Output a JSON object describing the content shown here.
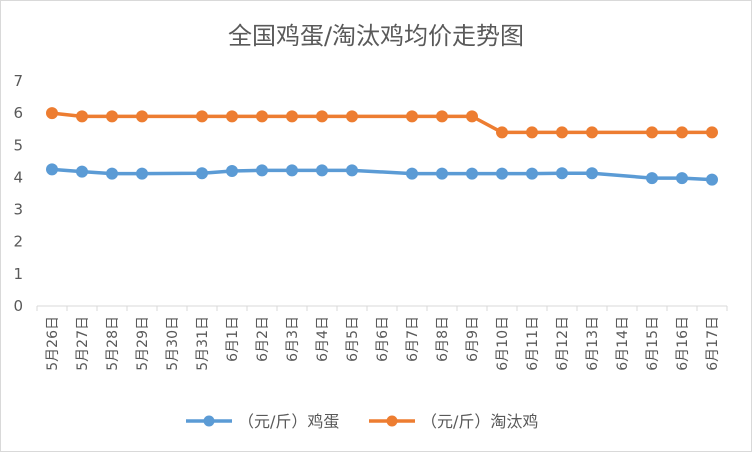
{
  "chart_data": {
    "type": "line",
    "title": "全国鸡蛋/淘汰鸡均价走势图",
    "xlabel": "",
    "ylabel": "",
    "ylim": [
      0,
      7
    ],
    "yticks": [
      0,
      1,
      2,
      3,
      4,
      5,
      6,
      7
    ],
    "grid": false,
    "legend_position": "bottom",
    "categories": [
      "5月26日",
      "5月27日",
      "5月28日",
      "5月29日",
      "5月30日",
      "5月31日",
      "6月1日",
      "6月2日",
      "6月3日",
      "6月4日",
      "6月5日",
      "6月6日",
      "6月7日",
      "6月8日",
      "6月9日",
      "6月10日",
      "6月11日",
      "6月12日",
      "6月13日",
      "6月14日",
      "6月15日",
      "6月16日",
      "6月17日"
    ],
    "series": [
      {
        "name": "（元/斤）鸡蛋",
        "color": "#5b9bd5",
        "values": [
          4.25,
          4.18,
          4.12,
          4.12,
          null,
          4.13,
          4.2,
          4.22,
          4.22,
          4.22,
          4.22,
          null,
          4.12,
          4.12,
          4.12,
          4.12,
          4.12,
          4.13,
          4.13,
          null,
          3.98,
          3.98,
          3.93
        ]
      },
      {
        "name": "（元/斤）淘汰鸡",
        "color": "#ed7d31",
        "values": [
          6.0,
          5.9,
          5.9,
          5.9,
          null,
          5.9,
          5.9,
          5.9,
          5.9,
          5.9,
          5.9,
          null,
          5.9,
          5.9,
          5.9,
          5.4,
          5.4,
          5.4,
          5.4,
          null,
          5.4,
          5.4,
          5.4
        ]
      }
    ]
  }
}
